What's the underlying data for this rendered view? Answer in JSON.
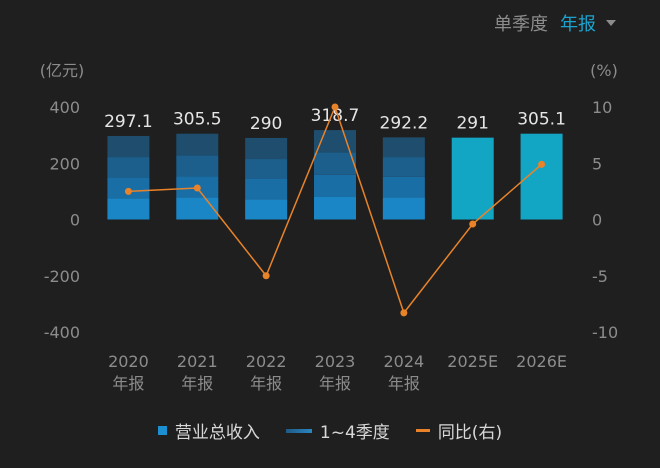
{
  "toggle": {
    "quarterly": "单季度",
    "annual": "年报"
  },
  "chart_data": {
    "type": "bar",
    "y_left_unit": "(亿元)",
    "y_right_unit": "(%)",
    "y_left_ticks": [
      "400",
      "200",
      "0",
      "-200",
      "-400"
    ],
    "y_right_ticks": [
      "10",
      "5",
      "0",
      "-5",
      "-10"
    ],
    "ylim_left": [
      -400,
      400
    ],
    "ylim_right": [
      -10,
      10
    ],
    "categories": [
      {
        "line1": "2020",
        "line2": "年报"
      },
      {
        "line1": "2021",
        "line2": "年报"
      },
      {
        "line1": "2022",
        "line2": "年报"
      },
      {
        "line1": "2023",
        "line2": "年报"
      },
      {
        "line1": "2024",
        "line2": "年报"
      },
      {
        "line1": "2025E",
        "line2": ""
      },
      {
        "line1": "2026E",
        "line2": ""
      }
    ],
    "totals": [
      297.1,
      305.5,
      290,
      318.7,
      292.2,
      291,
      305.1
    ],
    "total_labels": [
      "297.1",
      "305.5",
      "290",
      "318.7",
      "292.2",
      "291",
      "305.1"
    ],
    "quarterly": [
      [
        75,
        75,
        72,
        75
      ],
      [
        78,
        76,
        74,
        77
      ],
      [
        72,
        72,
        71,
        75
      ],
      [
        80,
        79,
        80,
        79
      ],
      [
        79,
        73,
        70,
        70
      ],
      null,
      null
    ],
    "yoy": [
      2.5,
      2.8,
      -5.0,
      10.0,
      -8.3,
      -0.4,
      4.9
    ],
    "colors": {
      "total": "#1b8fd0",
      "estimate": "#13a6c4",
      "q_dark": "#1f4d6e",
      "q_light": "#2a86c2",
      "yoy": "#e8832a"
    }
  },
  "legend": {
    "revenue": "营业总收入",
    "quarters": "1~4季度",
    "yoy": "同比(右)"
  }
}
